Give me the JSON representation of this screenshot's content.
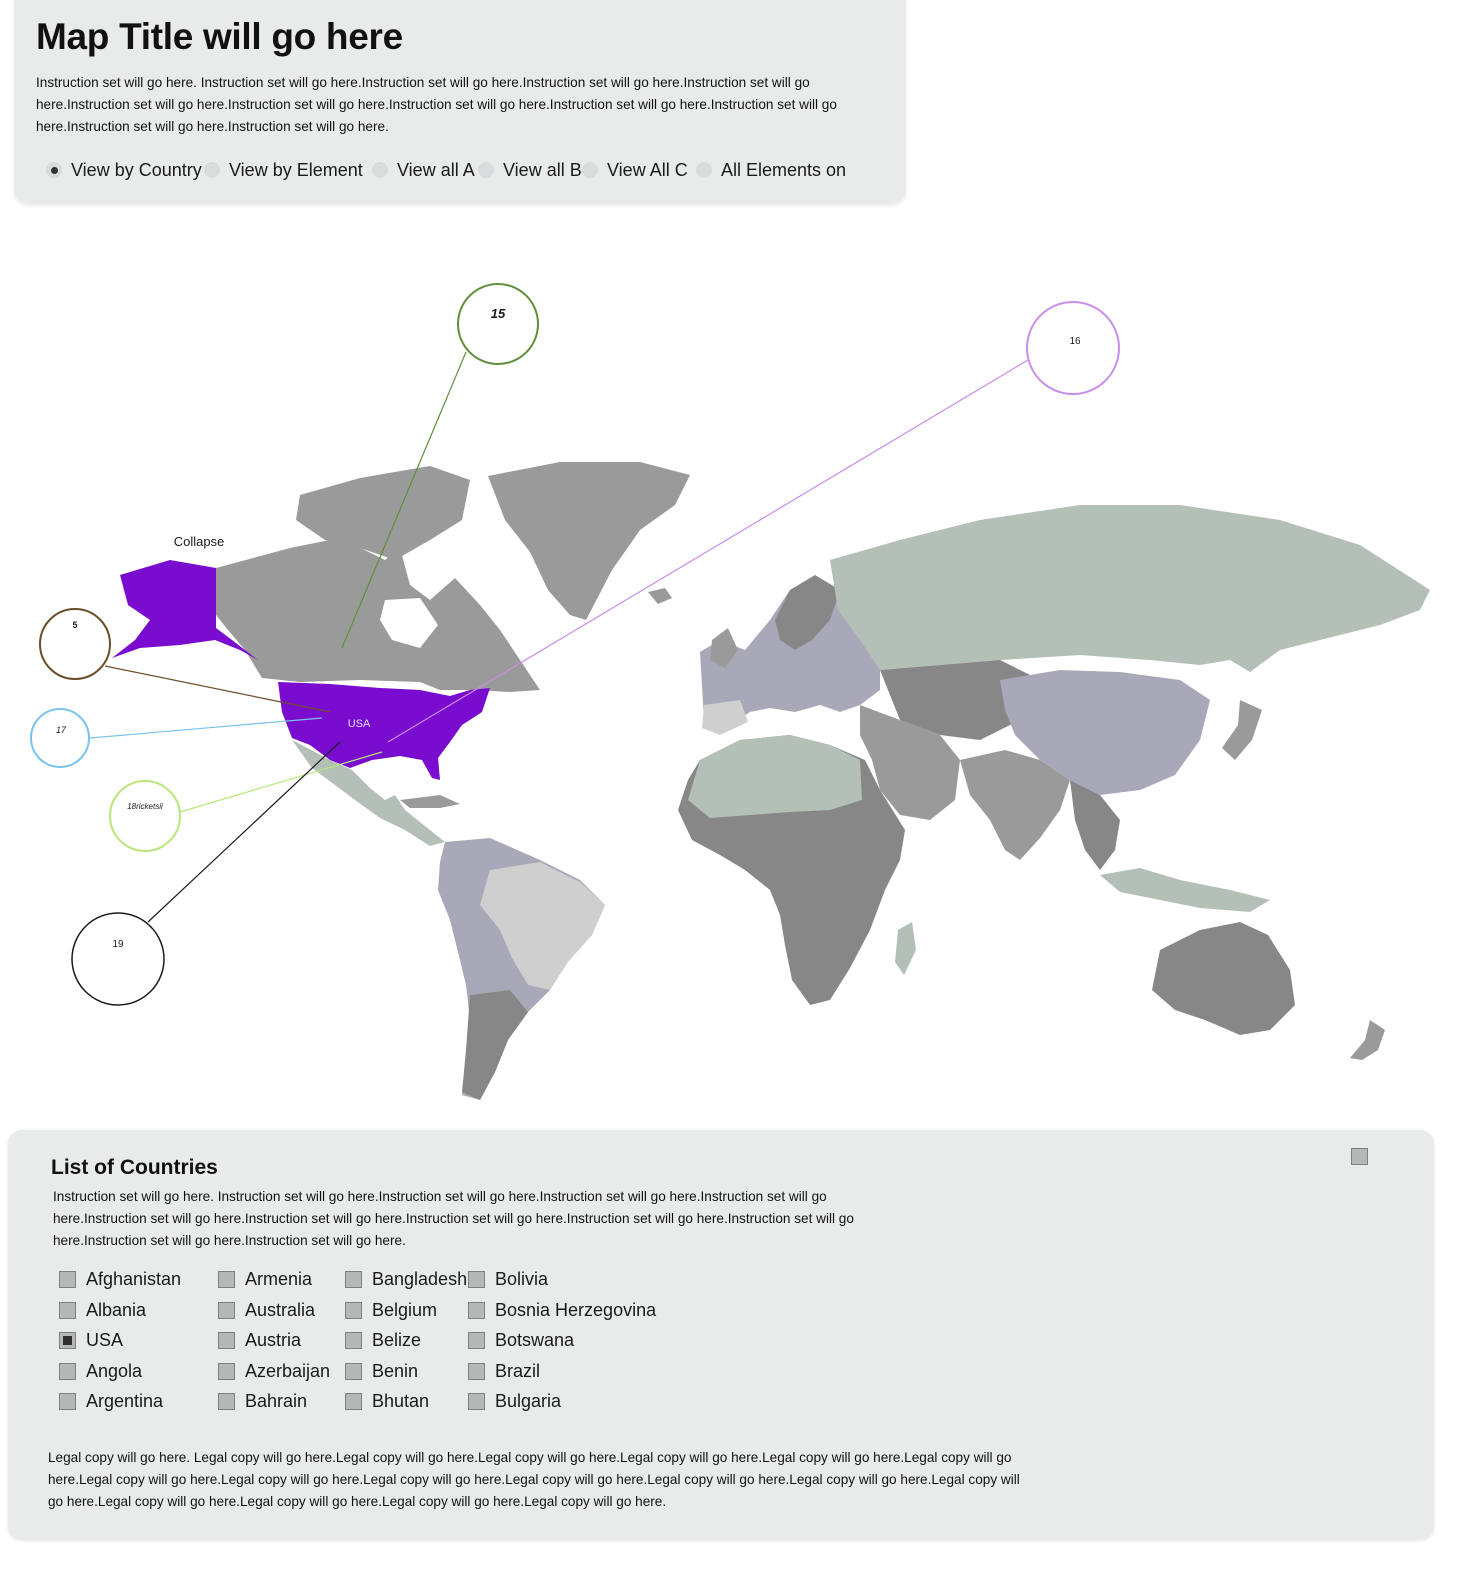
{
  "header": {
    "title": "Map Title will go here",
    "instructions": "Instruction set will go here. Instruction set will go here.Instruction set will go here.Instruction set will go here.Instruction set will go here.Instruction set will go here.Instruction set will go here.Instruction set will go here.Instruction set will go here.Instruction set will go here.Instruction set will go here.Instruction set will go here."
  },
  "view_options": [
    {
      "label": "View by Country",
      "selected": true
    },
    {
      "label": "View by Element",
      "selected": false
    },
    {
      "label": "View all A",
      "selected": false
    },
    {
      "label": "View all B",
      "selected": false
    },
    {
      "label": "View All C",
      "selected": false
    },
    {
      "label": "All Elements on",
      "selected": false
    }
  ],
  "map": {
    "collapse_label": "Collapse",
    "highlight_label": "USA",
    "highlight_color": "#7a0ccf",
    "land_colors": [
      "#9a9a9a",
      "#b4bfb7",
      "#a9a8b8",
      "#cfcfcf",
      "#878787"
    ],
    "callouts": [
      {
        "label": "15",
        "color": "#5f8f3a"
      },
      {
        "label": "16",
        "color": "#c98ee8"
      },
      {
        "label": "5",
        "color": "#6b4d2b"
      },
      {
        "label": "17",
        "color": "#7cc2ee"
      },
      {
        "label": "18ricketsii",
        "color": "#b9e879"
      },
      {
        "label": "19",
        "color": "#1a1a1a"
      }
    ]
  },
  "countries_panel": {
    "title": "List of Countries",
    "instructions": "Instruction set will go here. Instruction set will go here.Instruction set will go here.Instruction set will go here.Instruction set will go here.Instruction set will go here.Instruction set will go here.Instruction set will go here.Instruction set will go here.Instruction set will go here.Instruction set will go here.Instruction set will go here.",
    "columns": [
      [
        "Afghanistan",
        "Albania",
        "USA",
        "Angola",
        "Argentina"
      ],
      [
        "Armenia",
        "Australia",
        "Austria",
        "Azerbaijan",
        "Bahrain"
      ],
      [
        "Bangladesh",
        "Belgium",
        "Belize",
        "Benin",
        "Bhutan"
      ],
      [
        "Bolivia",
        "Bosnia Herzegovina",
        "Botswana",
        "Brazil",
        "Bulgaria"
      ]
    ],
    "checked": [
      "USA"
    ],
    "legal": "Legal copy will  go here. Legal copy will  go here.Legal copy will  go here.Legal copy will  go here.Legal copy will  go here.Legal copy will  go here.Legal copy will  go here.Legal copy will  go here.Legal copy will  go here.Legal copy will  go here.Legal copy will  go here.Legal copy will  go here.Legal copy will  go here.Legal copy will  go here.Legal copy will  go here.Legal copy will  go here.Legal copy will  go here.Legal copy will  go here."
  }
}
